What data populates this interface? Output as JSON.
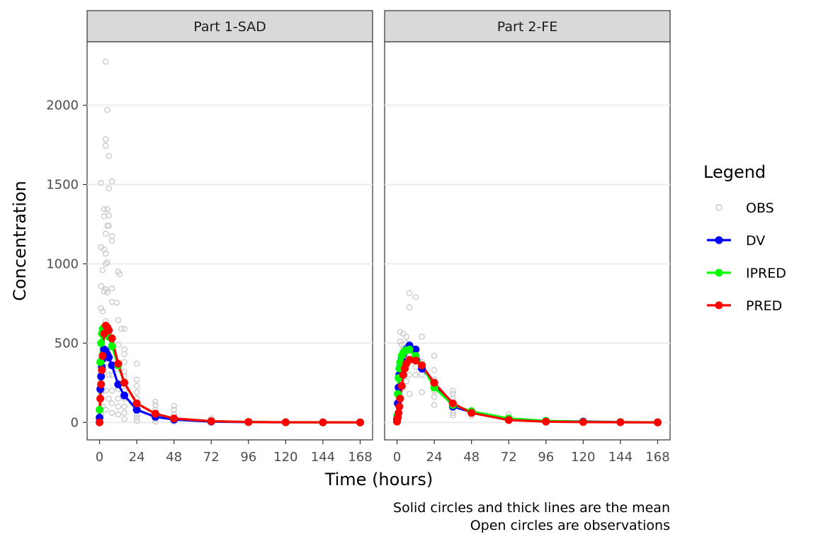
{
  "chart_data": {
    "type": "line",
    "xlabel": "Time (hours)",
    "ylabel": "Concentration",
    "x_ticks": [
      0,
      24,
      48,
      72,
      96,
      120,
      144,
      168
    ],
    "y_ticks": [
      0,
      500,
      1000,
      1500,
      2000
    ],
    "xlim": [
      -8,
      176
    ],
    "ylim": [
      -110,
      2400
    ],
    "grid": "horizontal major",
    "legend": {
      "title": "Legend",
      "position": "right",
      "entries": [
        {
          "name": "OBS",
          "kind": "open-circle",
          "color": "#c8c8c8"
        },
        {
          "name": "DV",
          "kind": "line-point",
          "color": "#0000ff"
        },
        {
          "name": "IPRED",
          "kind": "line-point",
          "color": "#00ff00"
        },
        {
          "name": "PRED",
          "kind": "line-point",
          "color": "#ff0000"
        }
      ]
    },
    "caption": [
      "Solid circles and thick lines are the mean",
      "Open circles are observations"
    ],
    "panels": [
      {
        "title": "Part 1-SAD",
        "series": [
          {
            "name": "DV",
            "color": "#0000ff",
            "x": [
              0,
              0.5,
              1,
              1.5,
              2,
              3,
              4,
              5,
              6,
              8,
              12,
              16,
              24,
              36,
              48,
              72,
              96,
              120,
              144,
              168
            ],
            "y": [
              30,
              210,
              290,
              350,
              400,
              460,
              450,
              430,
              410,
              360,
              240,
              170,
              80,
              35,
              18,
              5,
              2,
              1,
              0.5,
              0.2
            ]
          },
          {
            "name": "IPRED",
            "color": "#00ff00",
            "x": [
              0,
              0.5,
              1,
              1.5,
              2,
              3,
              4,
              5,
              6,
              8,
              12,
              16,
              24,
              36,
              48,
              72,
              96,
              120,
              144,
              168
            ],
            "y": [
              80,
              380,
              500,
              560,
              590,
              600,
              590,
              560,
              540,
              480,
              360,
              250,
              120,
              55,
              25,
              8,
              3,
              1,
              0.5,
              0.2
            ]
          },
          {
            "name": "PRED",
            "color": "#ff0000",
            "x": [
              0,
              0.5,
              1,
              1.5,
              2,
              3,
              4,
              5,
              6,
              8,
              12,
              16,
              24,
              36,
              48,
              72,
              96,
              120,
              144,
              168
            ],
            "y": [
              0,
              150,
              240,
              330,
              420,
              560,
              610,
              600,
              580,
              530,
              370,
              250,
              120,
              55,
              25,
              8,
              3,
              1,
              0.5,
              0.2
            ]
          }
        ],
        "obs": [
          [
            4,
            2275
          ],
          [
            5,
            1970
          ],
          [
            4,
            1785
          ],
          [
            4,
            1745
          ],
          [
            6,
            1680
          ],
          [
            1,
            1510
          ],
          [
            8,
            1520
          ],
          [
            6,
            1475
          ],
          [
            3,
            1345
          ],
          [
            5,
            1345
          ],
          [
            3,
            1300
          ],
          [
            6,
            1305
          ],
          [
            5,
            1240
          ],
          [
            6,
            1240
          ],
          [
            4,
            1190
          ],
          [
            8,
            1175
          ],
          [
            8,
            1145
          ],
          [
            1,
            1105
          ],
          [
            3,
            1090
          ],
          [
            4,
            1065
          ],
          [
            5,
            1010
          ],
          [
            4,
            1000
          ],
          [
            12,
            950
          ],
          [
            13,
            935
          ],
          [
            2,
            960
          ],
          [
            1,
            860
          ],
          [
            4,
            840
          ],
          [
            3,
            825
          ],
          [
            5,
            820
          ],
          [
            8,
            845
          ],
          [
            8,
            760
          ],
          [
            11,
            755
          ],
          [
            1,
            720
          ],
          [
            2,
            700
          ],
          [
            4,
            640
          ],
          [
            12,
            645
          ],
          [
            14,
            590
          ],
          [
            16,
            590
          ],
          [
            2,
            590
          ],
          [
            8,
            540
          ],
          [
            12,
            490
          ],
          [
            16,
            460
          ],
          [
            16,
            430
          ],
          [
            16,
            380
          ],
          [
            12,
            340
          ],
          [
            16,
            320
          ],
          [
            16,
            290
          ],
          [
            16,
            260
          ],
          [
            24,
            370
          ],
          [
            24,
            270
          ],
          [
            24,
            230
          ],
          [
            24,
            190
          ],
          [
            24,
            150
          ],
          [
            24,
            110
          ],
          [
            24,
            80
          ],
          [
            24,
            50
          ],
          [
            24,
            30
          ],
          [
            24,
            10
          ],
          [
            12,
            210
          ],
          [
            12,
            150
          ],
          [
            12,
            100
          ],
          [
            12,
            50
          ],
          [
            16,
            200
          ],
          [
            16,
            150
          ],
          [
            16,
            100
          ],
          [
            16,
            60
          ],
          [
            16,
            20
          ],
          [
            8,
            300
          ],
          [
            8,
            200
          ],
          [
            8,
            120
          ],
          [
            8,
            60
          ],
          [
            6,
            400
          ],
          [
            6,
            300
          ],
          [
            6,
            150
          ],
          [
            4,
            350
          ],
          [
            4,
            200
          ],
          [
            4,
            80
          ],
          [
            2,
            400
          ],
          [
            2,
            200
          ],
          [
            2,
            100
          ],
          [
            1,
            350
          ],
          [
            1,
            200
          ],
          [
            1,
            50
          ],
          [
            0.5,
            300
          ],
          [
            0.5,
            150
          ],
          [
            0.5,
            30
          ],
          [
            0,
            10
          ],
          [
            36,
            130
          ],
          [
            36,
            110
          ],
          [
            36,
            80
          ],
          [
            36,
            60
          ],
          [
            36,
            40
          ],
          [
            36,
            20
          ],
          [
            36,
            5
          ],
          [
            48,
            105
          ],
          [
            48,
            80
          ],
          [
            48,
            50
          ],
          [
            48,
            30
          ],
          [
            48,
            15
          ],
          [
            48,
            5
          ],
          [
            72,
            25
          ],
          [
            72,
            10
          ],
          [
            96,
            8
          ],
          [
            120,
            3
          ],
          [
            144,
            2
          ],
          [
            168,
            1
          ]
        ]
      },
      {
        "title": "Part 2-FE",
        "series": [
          {
            "name": "DV",
            "color": "#0000ff",
            "x": [
              0,
              0.5,
              1,
              1.5,
              2,
              3,
              4,
              5,
              6,
              8,
              12,
              16,
              24,
              36,
              48,
              72,
              96,
              120,
              144,
              168
            ],
            "y": [
              20,
              120,
              220,
              300,
              350,
              400,
              430,
              450,
              460,
              485,
              460,
              340,
              250,
              100,
              65,
              18,
              8,
              6,
              2,
              0.5
            ]
          },
          {
            "name": "IPRED",
            "color": "#00ff00",
            "x": [
              0,
              0.5,
              1,
              1.5,
              2,
              3,
              4,
              5,
              6,
              8,
              12,
              16,
              24,
              36,
              48,
              72,
              96,
              120,
              144,
              168
            ],
            "y": [
              40,
              180,
              280,
              340,
              380,
              420,
              440,
              450,
              455,
              460,
              420,
              360,
              220,
              110,
              70,
              25,
              10,
              4,
              2,
              0.5
            ]
          },
          {
            "name": "PRED",
            "color": "#ff0000",
            "x": [
              0,
              0.5,
              1,
              1.5,
              2,
              3,
              4,
              5,
              6,
              8,
              12,
              16,
              24,
              36,
              48,
              72,
              96,
              120,
              144,
              168
            ],
            "y": [
              5,
              30,
              60,
              100,
              150,
              230,
              300,
              340,
              370,
              395,
              390,
              360,
              250,
              120,
              60,
              15,
              5,
              2,
              1,
              0.3
            ]
          }
        ],
        "obs": [
          [
            8,
            815
          ],
          [
            12,
            790
          ],
          [
            8,
            725
          ],
          [
            2,
            570
          ],
          [
            4,
            560
          ],
          [
            6,
            540
          ],
          [
            16,
            540
          ],
          [
            2,
            510
          ],
          [
            3,
            490
          ],
          [
            4,
            470
          ],
          [
            6,
            500
          ],
          [
            8,
            450
          ],
          [
            8,
            420
          ],
          [
            12,
            430
          ],
          [
            12,
            390
          ],
          [
            16,
            380
          ],
          [
            24,
            420
          ],
          [
            24,
            330
          ],
          [
            24,
            270
          ],
          [
            24,
            200
          ],
          [
            24,
            160
          ],
          [
            24,
            110
          ],
          [
            16,
            300
          ],
          [
            16,
            190
          ],
          [
            12,
            350
          ],
          [
            12,
            300
          ],
          [
            8,
            300
          ],
          [
            8,
            180
          ],
          [
            6,
            380
          ],
          [
            6,
            260
          ],
          [
            4,
            350
          ],
          [
            4,
            220
          ],
          [
            2,
            380
          ],
          [
            2,
            200
          ],
          [
            1,
            300
          ],
          [
            1,
            150
          ],
          [
            0.5,
            180
          ],
          [
            0.5,
            60
          ],
          [
            0,
            10
          ],
          [
            36,
            200
          ],
          [
            36,
            180
          ],
          [
            36,
            150
          ],
          [
            36,
            120
          ],
          [
            36,
            90
          ],
          [
            36,
            60
          ],
          [
            36,
            45
          ],
          [
            48,
            80
          ],
          [
            48,
            60
          ],
          [
            48,
            40
          ],
          [
            72,
            50
          ],
          [
            72,
            30
          ],
          [
            96,
            15
          ],
          [
            120,
            10
          ],
          [
            144,
            4
          ],
          [
            168,
            2
          ]
        ]
      }
    ]
  }
}
